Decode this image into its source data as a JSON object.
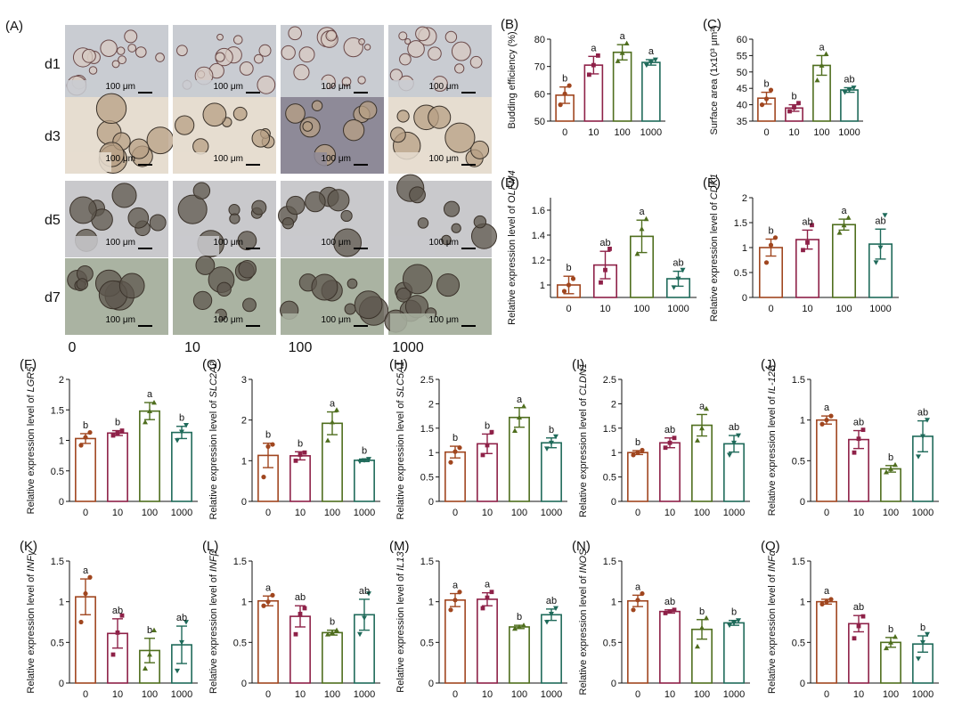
{
  "figure": {
    "panel_a_label": "(A)",
    "row_labels": [
      "d1",
      "d3",
      "d5",
      "d7"
    ],
    "column_labels": [
      "0",
      "10",
      "100",
      "1000"
    ],
    "scale_bar_text": "100 μm",
    "colors": {
      "0": "#a0461f",
      "10": "#8e2148",
      "100": "#4f6e1e",
      "1000": "#1f6a5a",
      "photo_d1": "#c9ccd2",
      "photo_d3": "#e6ddd0",
      "photo_d5": "#c9c9cc",
      "photo_d7": "#aab3a2",
      "photo_d3_col3": "#8e8a98"
    }
  },
  "chart_data": [
    {
      "id": "B",
      "panel_label": "(B)",
      "type": "bar",
      "ylabel": "Budding efficiency (%)",
      "ylabel_italic": "",
      "categories": [
        "0",
        "10",
        "100",
        "1000"
      ],
      "values": [
        59.5,
        70.5,
        75.2,
        71.5
      ],
      "errors": [
        3.0,
        3.2,
        2.8,
        1.0
      ],
      "letters": [
        "b",
        "a",
        "a",
        "a"
      ],
      "ylim": [
        50,
        80
      ],
      "yticks": [
        50,
        60,
        70,
        80
      ],
      "points": [
        [
          56,
          60,
          63
        ],
        [
          67,
          70.5,
          74
        ],
        [
          72,
          75,
          78.5
        ],
        [
          70.5,
          71.5,
          72.5
        ]
      ]
    },
    {
      "id": "C",
      "panel_label": "(C)",
      "type": "bar",
      "ylabel": "Surface area (1x10³ μm²)",
      "ylabel_italic": "",
      "categories": [
        "0",
        "10",
        "100",
        "1000"
      ],
      "values": [
        42.0,
        39.0,
        52.0,
        44.5
      ],
      "errors": [
        1.8,
        1.0,
        3.0,
        0.7
      ],
      "letters": [
        "b",
        "b",
        "a",
        "ab"
      ],
      "ylim": [
        35,
        60
      ],
      "yticks": [
        35,
        40,
        45,
        50,
        55,
        60
      ],
      "points": [
        [
          40,
          41.8,
          44.5
        ],
        [
          38,
          39.2,
          40.5
        ],
        [
          47.5,
          52,
          55.5
        ],
        [
          43.8,
          44.5,
          45.2
        ]
      ]
    },
    {
      "id": "D",
      "panel_label": "(D)",
      "type": "bar",
      "ylabel": "Relative expression  level of O",
      "ylabel_italic": "LFM4",
      "categories": [
        "0",
        "10",
        "100",
        "1000"
      ],
      "values": [
        1.0,
        1.16,
        1.39,
        1.05
      ],
      "errors": [
        0.07,
        0.11,
        0.13,
        0.06
      ],
      "letters": [
        "b",
        "ab",
        "a",
        "ab"
      ],
      "ylim": [
        0.9,
        1.7
      ],
      "yticks": [
        1.0,
        1.2,
        1.4,
        1.6
      ],
      "points": [
        [
          0.95,
          1.0,
          1.05
        ],
        [
          1.02,
          1.12,
          1.29
        ],
        [
          1.25,
          1.45,
          1.53
        ],
        [
          0.98,
          1.05,
          1.12
        ]
      ]
    },
    {
      "id": "E",
      "panel_label": "(E)",
      "type": "bar",
      "ylabel": "Relative expression level of ",
      "ylabel_italic": "CDK1",
      "categories": [
        "0",
        "10",
        "100",
        "1000"
      ],
      "values": [
        1.0,
        1.16,
        1.46,
        1.07
      ],
      "errors": [
        0.17,
        0.19,
        0.11,
        0.3
      ],
      "letters": [
        "b",
        "ab",
        "a",
        "ab"
      ],
      "ylim": [
        0,
        2.0
      ],
      "yticks": [
        0,
        0.5,
        1.0,
        1.5,
        2.0
      ],
      "points": [
        [
          0.7,
          1.05,
          1.2
        ],
        [
          0.95,
          1.1,
          1.45
        ],
        [
          1.3,
          1.45,
          1.6
        ],
        [
          0.7,
          1.0,
          1.65
        ]
      ]
    },
    {
      "id": "F",
      "panel_label": "(F)",
      "type": "bar",
      "ylabel": "Relative expression level of ",
      "ylabel_italic": "LGR5",
      "categories": [
        "0",
        "10",
        "100",
        "1000"
      ],
      "values": [
        1.03,
        1.12,
        1.48,
        1.13
      ],
      "errors": [
        0.08,
        0.04,
        0.14,
        0.1
      ],
      "letters": [
        "b",
        "b",
        "a",
        "b"
      ],
      "ylim": [
        0,
        2.0
      ],
      "yticks": [
        0,
        0.5,
        1.0,
        1.5,
        2.0
      ],
      "points": [
        [
          0.92,
          1.05,
          1.13
        ],
        [
          1.08,
          1.12,
          1.16
        ],
        [
          1.3,
          1.48,
          1.62
        ],
        [
          1.0,
          1.14,
          1.25
        ]
      ]
    },
    {
      "id": "G",
      "panel_label": "(G)",
      "type": "bar",
      "ylabel": "Relative expression level of ",
      "ylabel_italic": "SLC2A2",
      "categories": [
        "0",
        "10",
        "100",
        "1000"
      ],
      "values": [
        1.13,
        1.12,
        1.92,
        1.01
      ],
      "errors": [
        0.3,
        0.1,
        0.28,
        0.03
      ],
      "letters": [
        "b",
        "b",
        "a",
        "b"
      ],
      "ylim": [
        0,
        3
      ],
      "yticks": [
        0,
        1,
        2,
        3
      ],
      "points": [
        [
          0.6,
          1.35,
          1.4
        ],
        [
          1.0,
          1.15,
          1.2
        ],
        [
          1.5,
          1.95,
          2.25
        ],
        [
          0.98,
          1.01,
          1.04
        ]
      ]
    },
    {
      "id": "H",
      "panel_label": "(H)",
      "type": "bar",
      "ylabel": "Relative expression level of ",
      "ylabel_italic": "SLC5A1",
      "categories": [
        "0",
        "10",
        "100",
        "1000"
      ],
      "values": [
        1.01,
        1.18,
        1.72,
        1.2
      ],
      "errors": [
        0.12,
        0.2,
        0.2,
        0.1
      ],
      "letters": [
        "b",
        "b",
        "a",
        "b"
      ],
      "ylim": [
        0,
        2.5
      ],
      "yticks": [
        0,
        0.5,
        1.0,
        1.5,
        2.0,
        2.5
      ],
      "points": [
        [
          0.8,
          1.02,
          1.1
        ],
        [
          0.95,
          1.15,
          1.42
        ],
        [
          1.45,
          1.72,
          1.95
        ],
        [
          1.08,
          1.2,
          1.33
        ]
      ]
    },
    {
      "id": "I",
      "panel_label": "(I)",
      "type": "bar",
      "ylabel": "Relative expression level of ",
      "ylabel_italic": "CLDN1",
      "categories": [
        "0",
        "10",
        "100",
        "1000"
      ],
      "values": [
        1.0,
        1.2,
        1.56,
        1.18
      ],
      "errors": [
        0.04,
        0.1,
        0.22,
        0.17
      ],
      "letters": [
        "b",
        "ab",
        "a",
        "ab"
      ],
      "ylim": [
        0,
        2.5
      ],
      "yticks": [
        0,
        0.5,
        1.0,
        1.5,
        2.0,
        2.5
      ],
      "points": [
        [
          0.95,
          1.0,
          1.05
        ],
        [
          1.1,
          1.2,
          1.3
        ],
        [
          1.25,
          1.5,
          1.9
        ],
        [
          0.95,
          1.2,
          1.35
        ]
      ]
    },
    {
      "id": "J",
      "panel_label": "(J)",
      "type": "bar",
      "ylabel": "Relative expression level of ",
      "ylabel_italic": "IL-12B",
      "categories": [
        "0",
        "10",
        "100",
        "1000"
      ],
      "values": [
        1.0,
        0.76,
        0.4,
        0.8
      ],
      "errors": [
        0.05,
        0.11,
        0.04,
        0.19
      ],
      "letters": [
        "a",
        "ab",
        "b",
        "ab"
      ],
      "ylim": [
        0,
        1.5
      ],
      "yticks": [
        0,
        0.5,
        1.0,
        1.5
      ],
      "points": [
        [
          0.95,
          1.0,
          1.05
        ],
        [
          0.6,
          0.77,
          0.88
        ],
        [
          0.36,
          0.4,
          0.45
        ],
        [
          0.55,
          0.8,
          1.0
        ]
      ]
    },
    {
      "id": "K",
      "panel_label": "(K)",
      "type": "bar",
      "ylabel": "Relative expression level of ",
      "ylabel_italic": "INFγ",
      "categories": [
        "0",
        "10",
        "100",
        "1000"
      ],
      "values": [
        1.06,
        0.61,
        0.4,
        0.47
      ],
      "errors": [
        0.22,
        0.18,
        0.15,
        0.23
      ],
      "letters": [
        "a",
        "ab",
        "b",
        "ab"
      ],
      "ylim": [
        0,
        1.5
      ],
      "yticks": [
        0,
        0.5,
        1.0,
        1.5
      ],
      "points": [
        [
          0.75,
          1.1,
          1.3
        ],
        [
          0.35,
          0.62,
          0.83
        ],
        [
          0.18,
          0.35,
          0.65
        ],
        [
          0.15,
          0.5,
          0.75
        ]
      ]
    },
    {
      "id": "L",
      "panel_label": "(L)",
      "type": "bar",
      "ylabel": "Relative expression level of ",
      "ylabel_italic": "INFβ",
      "categories": [
        "0",
        "10",
        "100",
        "1000"
      ],
      "values": [
        1.01,
        0.82,
        0.62,
        0.84
      ],
      "errors": [
        0.06,
        0.13,
        0.03,
        0.19
      ],
      "letters": [
        "a",
        "ab",
        "b",
        "ab"
      ],
      "ylim": [
        0,
        1.5
      ],
      "yticks": [
        0,
        0.5,
        1.0,
        1.5
      ],
      "points": [
        [
          0.95,
          1.0,
          1.08
        ],
        [
          0.6,
          0.85,
          0.92
        ],
        [
          0.6,
          0.62,
          0.65
        ],
        [
          0.6,
          0.8,
          1.1
        ]
      ]
    },
    {
      "id": "M",
      "panel_label": "(M)",
      "type": "bar",
      "ylabel": "Relative expression level of ",
      "ylabel_italic": "IL13",
      "categories": [
        "0",
        "10",
        "100",
        "1000"
      ],
      "values": [
        1.02,
        1.03,
        0.69,
        0.84
      ],
      "errors": [
        0.08,
        0.08,
        0.02,
        0.07
      ],
      "letters": [
        "a",
        "a",
        "b",
        "ab"
      ],
      "ylim": [
        0,
        1.5
      ],
      "yticks": [
        0,
        0.5,
        1.0,
        1.5
      ],
      "points": [
        [
          0.9,
          1.02,
          1.12
        ],
        [
          0.92,
          1.05,
          1.12
        ],
        [
          0.67,
          0.69,
          0.71
        ],
        [
          0.75,
          0.85,
          0.92
        ]
      ]
    },
    {
      "id": "N",
      "panel_label": "(N)",
      "type": "bar",
      "ylabel": "Relative expression level of ",
      "ylabel_italic": "INOS",
      "categories": [
        "0",
        "10",
        "100",
        "1000"
      ],
      "values": [
        1.01,
        0.88,
        0.66,
        0.74
      ],
      "errors": [
        0.07,
        0.02,
        0.12,
        0.03
      ],
      "letters": [
        "a",
        "ab",
        "b",
        "b"
      ],
      "ylim": [
        0,
        1.5
      ],
      "yticks": [
        0,
        0.5,
        1.0,
        1.5
      ],
      "points": [
        [
          0.9,
          1.02,
          1.1
        ],
        [
          0.86,
          0.88,
          0.9
        ],
        [
          0.45,
          0.68,
          0.8
        ],
        [
          0.71,
          0.74,
          0.77
        ]
      ]
    },
    {
      "id": "O",
      "panel_label": "(O)",
      "type": "bar",
      "ylabel": "Relative expression level of ",
      "ylabel_italic": "INFα",
      "categories": [
        "0",
        "10",
        "100",
        "1000"
      ],
      "values": [
        1.0,
        0.73,
        0.5,
        0.48
      ],
      "errors": [
        0.03,
        0.1,
        0.06,
        0.1
      ],
      "letters": [
        "a",
        "ab",
        "b",
        "b"
      ],
      "ylim": [
        0,
        1.5
      ],
      "yticks": [
        0,
        0.5,
        1.0,
        1.5
      ],
      "points": [
        [
          0.97,
          1.0,
          1.03
        ],
        [
          0.55,
          0.7,
          0.82
        ],
        [
          0.43,
          0.5,
          0.57
        ],
        [
          0.3,
          0.5,
          0.6
        ]
      ]
    }
  ]
}
